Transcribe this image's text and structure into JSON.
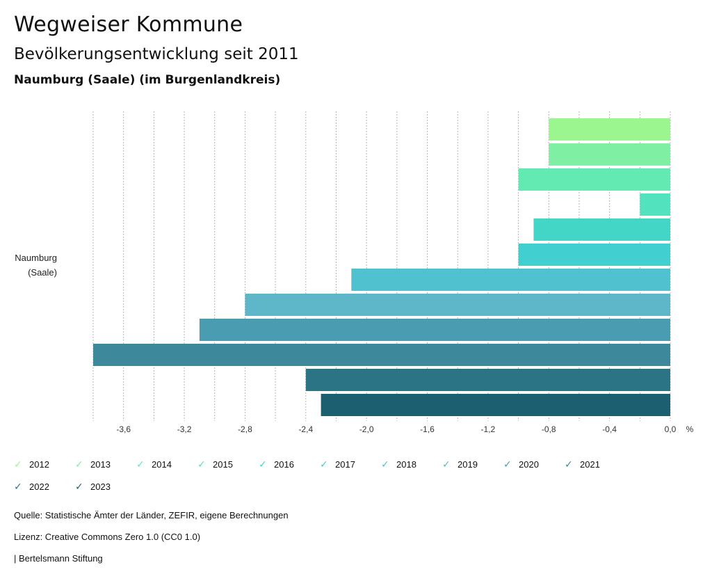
{
  "header": {
    "title": "Wegweiser Kommune",
    "subtitle": "Bevölkerungsentwicklung seit 2011",
    "region": "Naumburg (Saale) (im Burgenlandkreis)"
  },
  "chart_data": {
    "type": "bar",
    "orientation": "horizontal",
    "category": "Naumburg (Saale)",
    "category_lines": [
      "Naumburg",
      "(Saale)"
    ],
    "unit": "%",
    "xlim": [
      -3.8,
      0.0
    ],
    "x_ticks": [
      -3.6,
      -3.2,
      -2.8,
      -2.4,
      -2.0,
      -1.6,
      -1.2,
      -0.8,
      -0.4,
      0.0
    ],
    "x_tick_labels": [
      "-3,6",
      "-3,2",
      "-2,8",
      "-2,4",
      "-2,0",
      "-1,6",
      "-1,2",
      "-0,8",
      "-0,4",
      "0,0"
    ],
    "grid": true,
    "legend_position": "bottom",
    "series": [
      {
        "name": "2012",
        "value": -0.8,
        "color": "#9cf68f"
      },
      {
        "name": "2013",
        "value": -0.8,
        "color": "#7fefa3"
      },
      {
        "name": "2014",
        "value": -1.0,
        "color": "#63e9b2"
      },
      {
        "name": "2015",
        "value": -0.2,
        "color": "#52e3be"
      },
      {
        "name": "2016",
        "value": -0.9,
        "color": "#43d6c6"
      },
      {
        "name": "2017",
        "value": -1.0,
        "color": "#42cfd0"
      },
      {
        "name": "2018",
        "value": -2.1,
        "color": "#4fc1cf"
      },
      {
        "name": "2019",
        "value": -2.8,
        "color": "#5db7c8"
      },
      {
        "name": "2020",
        "value": -3.1,
        "color": "#4a9db0"
      },
      {
        "name": "2021",
        "value": -3.8,
        "color": "#3d889a"
      },
      {
        "name": "2022",
        "value": -2.4,
        "color": "#2a7485"
      },
      {
        "name": "2023",
        "value": -2.3,
        "color": "#1b5f70"
      }
    ]
  },
  "footer": {
    "source": "Quelle: Statistische Ämter der Länder, ZEFIR, eigene Berechnungen",
    "license": "Lizenz: Creative Commons Zero 1.0 (CC0 1.0)",
    "publisher": "| Bertelsmann Stiftung"
  }
}
